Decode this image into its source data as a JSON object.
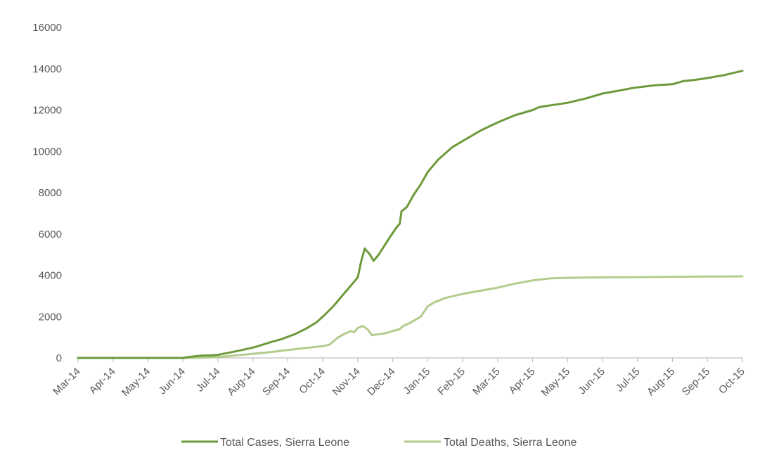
{
  "chart_data": {
    "type": "line",
    "title": "",
    "xlabel": "",
    "ylabel": "",
    "ylim": [
      0,
      16000
    ],
    "yticks": [
      0,
      2000,
      4000,
      6000,
      8000,
      10000,
      12000,
      14000,
      16000
    ],
    "xticks": [
      "Mar-14",
      "Apr-14",
      "May-14",
      "Jun-14",
      "Jul-14",
      "Aug-14",
      "Sep-14",
      "Oct-14",
      "Nov-14",
      "Dec-14",
      "Jan-15",
      "Feb-15",
      "Mar-15",
      "Apr-15",
      "May-15",
      "Jun-15",
      "Jul-15",
      "Aug-15",
      "Sep-15",
      "Oct-15"
    ],
    "grid": false,
    "legend_position": "bottom",
    "colors": {
      "cases": "#6e9a3c",
      "deaths": "#b3cc8c",
      "axis": "#bfbfbf",
      "text": "#595959"
    },
    "x_unit": "months since Mar-14",
    "series": [
      {
        "name": "Total Cases, Sierra Leone",
        "points": [
          [
            0,
            0
          ],
          [
            1,
            0
          ],
          [
            2,
            0
          ],
          [
            3,
            0
          ],
          [
            3.1,
            30
          ],
          [
            3.3,
            70
          ],
          [
            3.6,
            120
          ],
          [
            3.8,
            120
          ],
          [
            4,
            150
          ],
          [
            4.3,
            250
          ],
          [
            4.6,
            350
          ],
          [
            5,
            500
          ],
          [
            5.2,
            600
          ],
          [
            5.5,
            760
          ],
          [
            5.8,
            900
          ],
          [
            6.2,
            1150
          ],
          [
            6.5,
            1400
          ],
          [
            6.8,
            1700
          ],
          [
            7,
            2000
          ],
          [
            7.3,
            2500
          ],
          [
            7.6,
            3100
          ],
          [
            7.85,
            3600
          ],
          [
            8,
            3900
          ],
          [
            8.1,
            4700
          ],
          [
            8.2,
            5300
          ],
          [
            8.35,
            5000
          ],
          [
            8.45,
            4700
          ],
          [
            8.6,
            5000
          ],
          [
            8.9,
            5800
          ],
          [
            9.1,
            6300
          ],
          [
            9.2,
            6500
          ],
          [
            9.25,
            7100
          ],
          [
            9.4,
            7300
          ],
          [
            9.6,
            7900
          ],
          [
            9.8,
            8400
          ],
          [
            10,
            9000
          ],
          [
            10.3,
            9600
          ],
          [
            10.7,
            10200
          ],
          [
            11,
            10500
          ],
          [
            11.5,
            11000
          ],
          [
            12,
            11400
          ],
          [
            12.5,
            11750
          ],
          [
            13,
            12000
          ],
          [
            13.2,
            12150
          ],
          [
            13.6,
            12250
          ],
          [
            14,
            12350
          ],
          [
            14.5,
            12550
          ],
          [
            15,
            12800
          ],
          [
            15.5,
            12950
          ],
          [
            15.8,
            13050
          ],
          [
            16,
            13100
          ],
          [
            16.5,
            13200
          ],
          [
            17,
            13250
          ],
          [
            17.3,
            13400
          ],
          [
            17.6,
            13450
          ],
          [
            18,
            13550
          ],
          [
            18.5,
            13700
          ],
          [
            19,
            13900
          ]
        ]
      },
      {
        "name": "Total Deaths, Sierra Leone",
        "points": [
          [
            0,
            0
          ],
          [
            1,
            0
          ],
          [
            2,
            0
          ],
          [
            3,
            0
          ],
          [
            3.5,
            10
          ],
          [
            4,
            40
          ],
          [
            4.5,
            120
          ],
          [
            5,
            200
          ],
          [
            5.5,
            280
          ],
          [
            6,
            380
          ],
          [
            6.5,
            480
          ],
          [
            7,
            570
          ],
          [
            7.2,
            650
          ],
          [
            7.4,
            950
          ],
          [
            7.6,
            1150
          ],
          [
            7.8,
            1300
          ],
          [
            7.9,
            1250
          ],
          [
            8,
            1450
          ],
          [
            8.15,
            1550
          ],
          [
            8.3,
            1350
          ],
          [
            8.4,
            1100
          ],
          [
            8.6,
            1150
          ],
          [
            8.8,
            1200
          ],
          [
            9,
            1300
          ],
          [
            9.2,
            1400
          ],
          [
            9.3,
            1550
          ],
          [
            9.5,
            1700
          ],
          [
            9.8,
            2000
          ],
          [
            10,
            2500
          ],
          [
            10.2,
            2700
          ],
          [
            10.5,
            2900
          ],
          [
            11,
            3100
          ],
          [
            11.5,
            3250
          ],
          [
            12,
            3400
          ],
          [
            12.5,
            3600
          ],
          [
            13,
            3750
          ],
          [
            13.5,
            3850
          ],
          [
            14,
            3880
          ],
          [
            15,
            3900
          ],
          [
            16,
            3910
          ],
          [
            17,
            3930
          ],
          [
            18,
            3940
          ],
          [
            19,
            3950
          ]
        ]
      }
    ]
  }
}
